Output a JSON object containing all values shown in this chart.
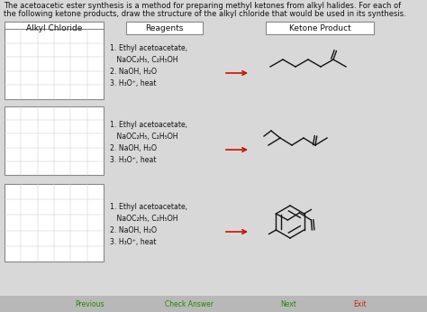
{
  "title_line1": "The acetoacetic ester synthesis is a method for preparing methyl ketones from alkyl halides. For each of",
  "title_line2": "the following ketone products, draw the structure of the alkyl chloride that would be used in its synthesis.",
  "col1_header": "Alkyl Chloride",
  "col2_header": "Reagents",
  "col3_header": "Ketone Product",
  "reagents_text": "1. Ethyl acetoacetate,\n   NaOC₂H₅, C₂H₅OH\n2. NaOH, H₂O\n3. H₃O⁺, heat",
  "bg_color": "#d8d8d8",
  "box_color": "#ffffff",
  "grid_color": "#cccccc",
  "border_color": "#888888",
  "text_color": "#111111",
  "arrow_color": "#cc1100",
  "nav_bg": "#b0b0b0",
  "nav_text": "#222222"
}
